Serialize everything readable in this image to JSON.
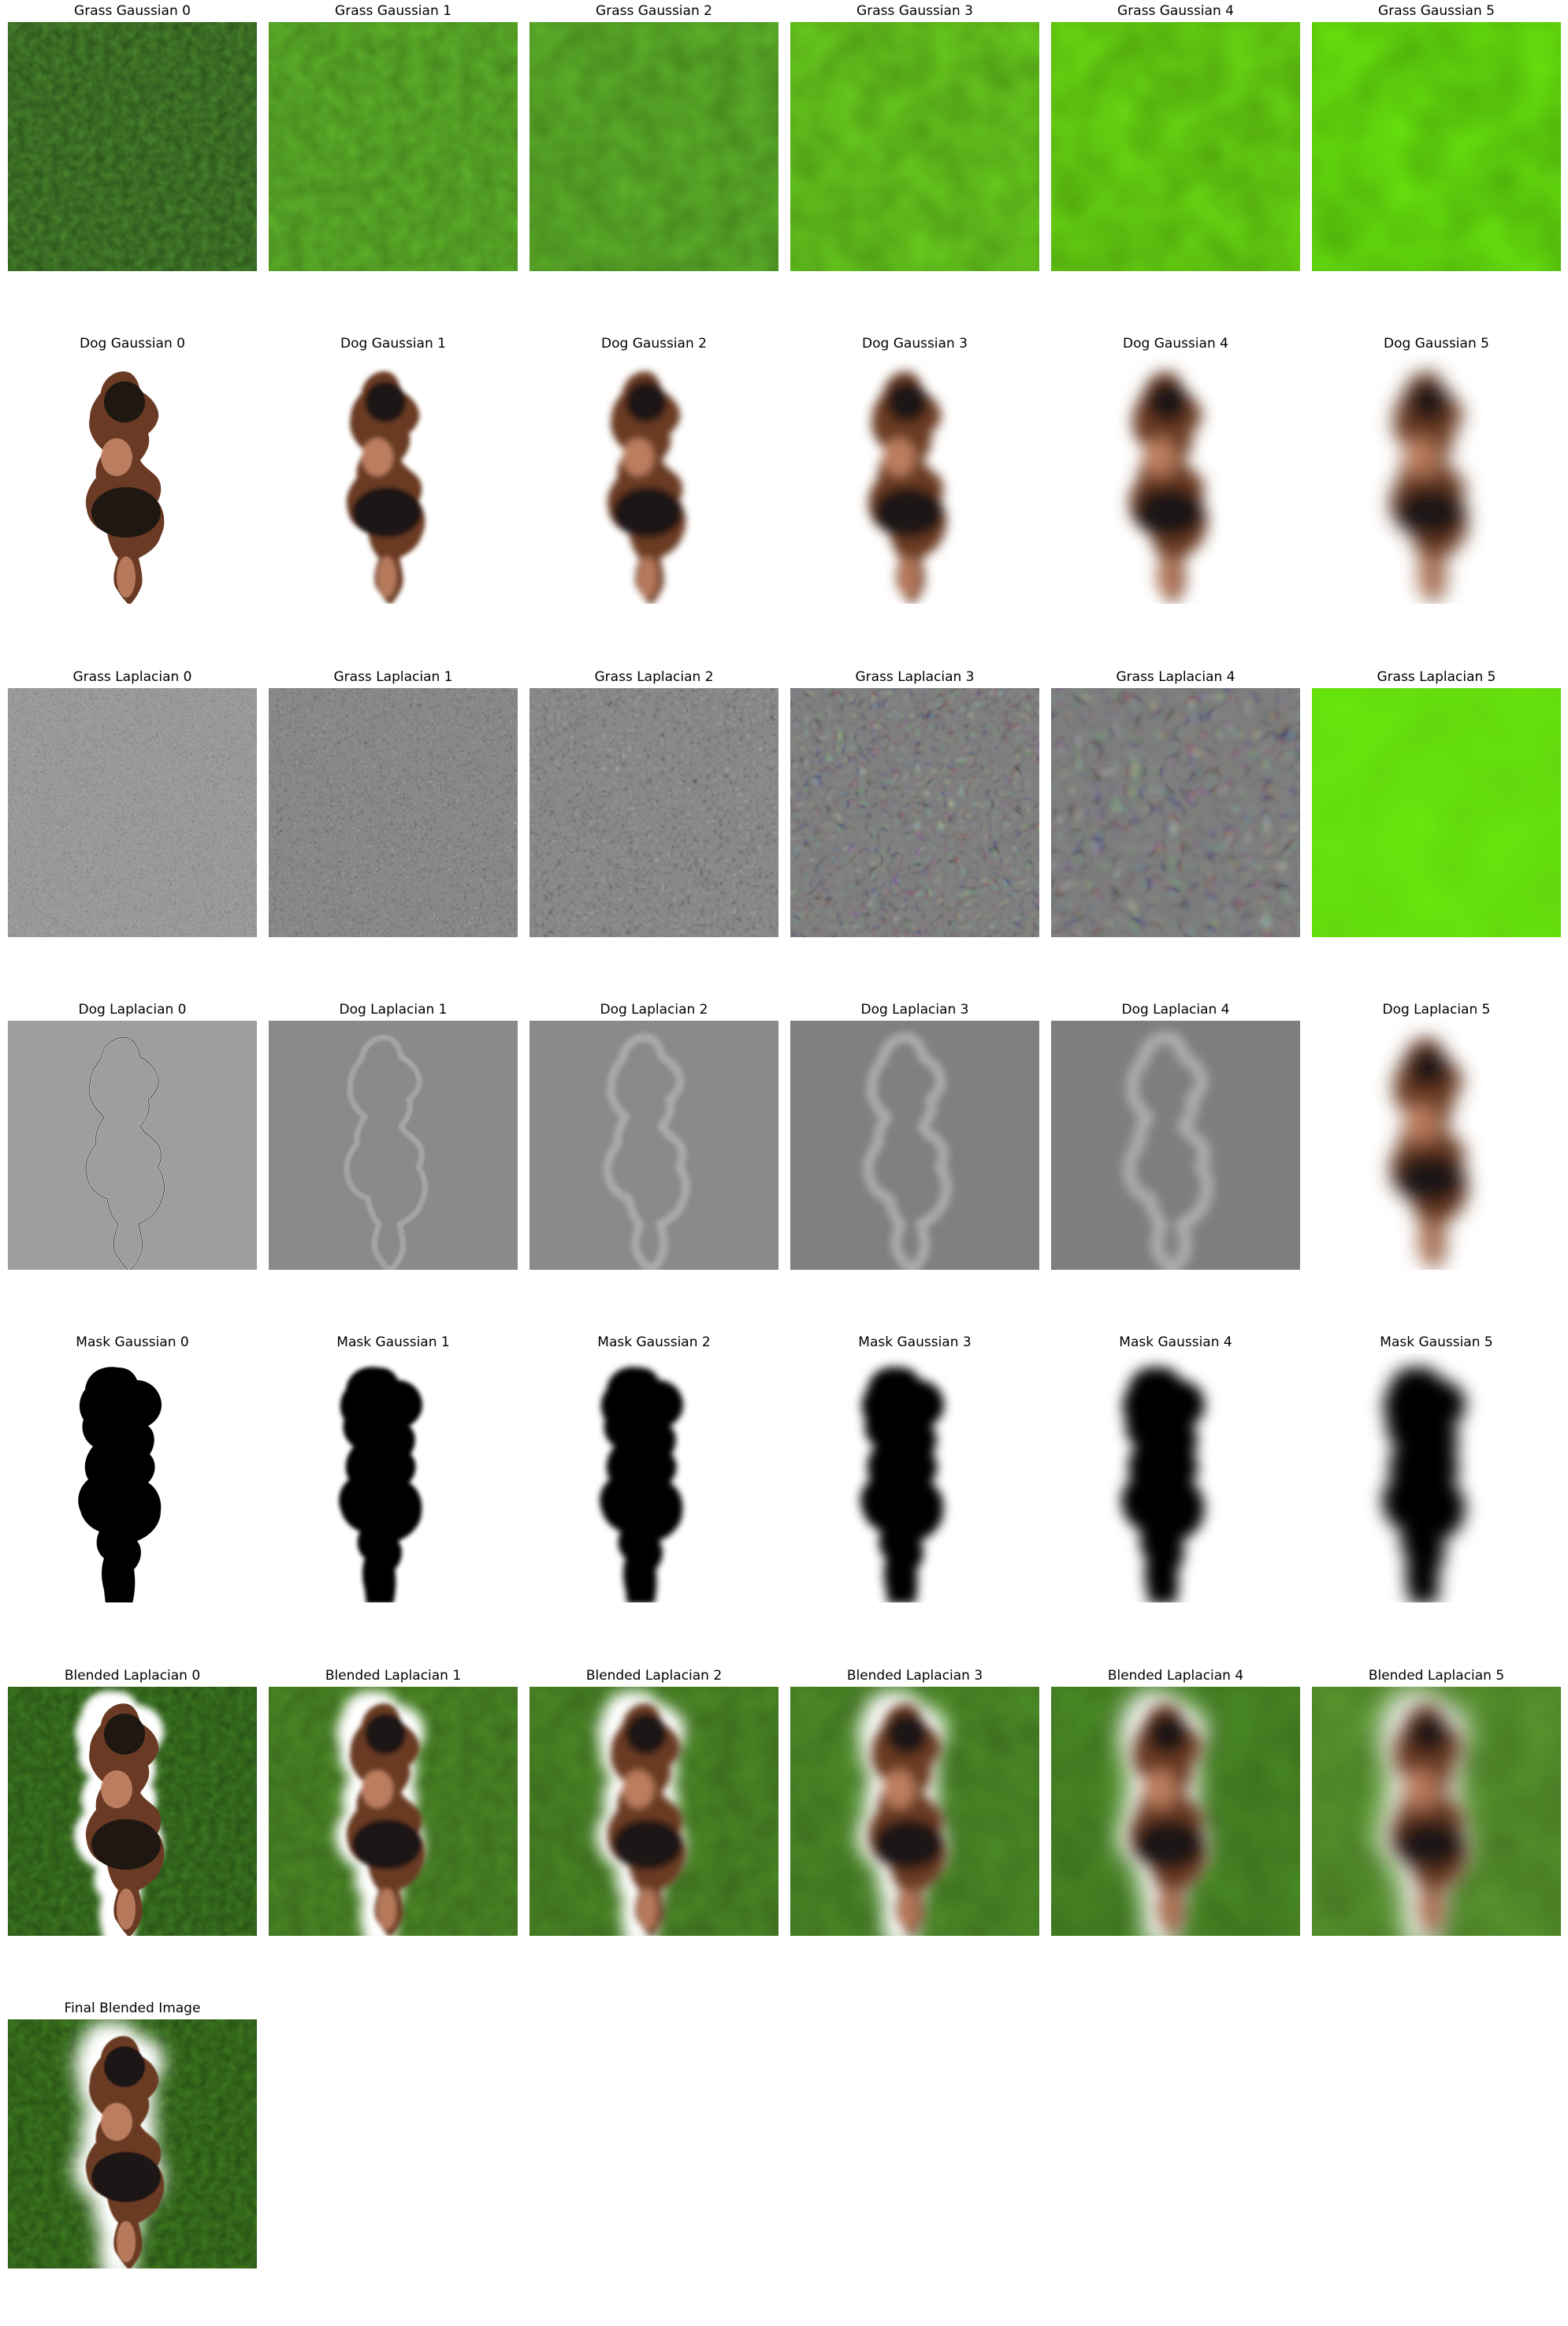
{
  "figure": {
    "rows": [
      {
        "kind": "grass_gauss",
        "titles": [
          "Grass Gaussian 0",
          "Grass Gaussian 1",
          "Grass Gaussian 2",
          "Grass Gaussian 3",
          "Grass Gaussian 4",
          "Grass Gaussian 5"
        ]
      },
      {
        "kind": "dog_gauss",
        "titles": [
          "Dog Gaussian 0",
          "Dog Gaussian 1",
          "Dog Gaussian 2",
          "Dog Gaussian 3",
          "Dog Gaussian 4",
          "Dog Gaussian 5"
        ]
      },
      {
        "kind": "grass_lap",
        "titles": [
          "Grass Laplacian 0",
          "Grass Laplacian 1",
          "Grass Laplacian 2",
          "Grass Laplacian 3",
          "Grass Laplacian 4",
          "Grass Laplacian 5"
        ]
      },
      {
        "kind": "dog_lap",
        "titles": [
          "Dog Laplacian 0",
          "Dog Laplacian 1",
          "Dog Laplacian 2",
          "Dog Laplacian 3",
          "Dog Laplacian 4",
          "Dog Laplacian 5"
        ]
      },
      {
        "kind": "mask",
        "titles": [
          "Mask Gaussian 0",
          "Mask Gaussian 1",
          "Mask Gaussian 2",
          "Mask Gaussian 3",
          "Mask Gaussian 4",
          "Mask Gaussian 5"
        ]
      },
      {
        "kind": "blend",
        "titles": [
          "Blended Laplacian 0",
          "Blended Laplacian 1",
          "Blended Laplacian 2",
          "Blended Laplacian 3",
          "Blended Laplacian 4",
          "Blended Laplacian 5"
        ]
      },
      {
        "kind": "final",
        "titles": [
          "Final Blended Image"
        ]
      }
    ]
  },
  "palette": {
    "grass_levels": [
      "#4a8a2e",
      "#5fb52a",
      "#5fb52a",
      "#6ad01e",
      "#6cde12",
      "#6aea0e"
    ],
    "dog_dark": "#1e1712",
    "dog_brown": "#6a3a24",
    "dog_tan": "#c98a6a",
    "lap_gray": [
      "#9e9e9e",
      "#8a8a8a",
      "#8a8a8a",
      "#808080",
      "#7e7e7e",
      "#ffffff"
    ],
    "mask_black": "#000000",
    "blend_green": [
      "#3e7e22",
      "#4c8a26",
      "#4c8a26",
      "#4e8e28",
      "#4c8e26",
      "#5a9a2e"
    ],
    "final_green": "#3f7f20"
  }
}
